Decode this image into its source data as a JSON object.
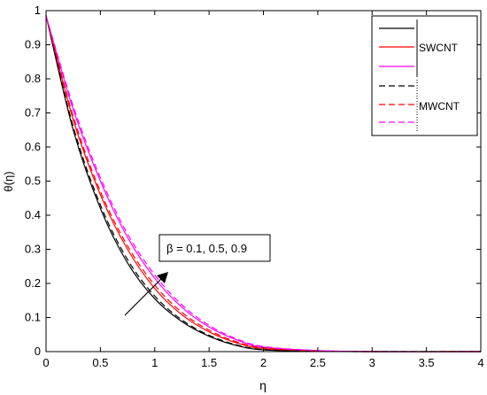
{
  "chart_data": {
    "type": "line",
    "xlabel": "η",
    "ylabel": "θ(η)",
    "xlim": [
      0,
      4
    ],
    "ylim": [
      0,
      1
    ],
    "xticks": [
      "0",
      "0.5",
      "1",
      "1.5",
      "2",
      "2.5",
      "3",
      "3.5",
      "4"
    ],
    "yticks": [
      "0",
      "0.1",
      "0.2",
      "0.3",
      "0.4",
      "0.5",
      "0.6",
      "0.7",
      "0.8",
      "0.9",
      "1"
    ],
    "grid": false,
    "legend_position": "top-right",
    "legend_labels": [
      "SWCNT",
      "MWCNT"
    ],
    "annotation": "β = 0.1, 0.5, 0.9",
    "series": [
      {
        "group": "SWCNT",
        "color": "#000000",
        "dash": "solid",
        "x": [
          0,
          0.25,
          0.5,
          0.75,
          1.0,
          1.25,
          1.5,
          1.75,
          2.0,
          2.5,
          3.0,
          4.0
        ],
        "values": [
          0.985,
          0.65,
          0.42,
          0.26,
          0.155,
          0.088,
          0.045,
          0.018,
          0.005,
          0.001,
          0,
          0
        ]
      },
      {
        "group": "SWCNT",
        "color": "#ff0000",
        "dash": "solid",
        "x": [
          0,
          0.25,
          0.5,
          0.75,
          1.0,
          1.25,
          1.5,
          1.75,
          2.0,
          2.5,
          3.0,
          4.0
        ],
        "values": [
          0.985,
          0.68,
          0.46,
          0.3,
          0.185,
          0.108,
          0.058,
          0.026,
          0.009,
          0.002,
          0,
          0
        ]
      },
      {
        "group": "SWCNT",
        "color": "#ff00ff",
        "dash": "solid",
        "x": [
          0,
          0.25,
          0.5,
          0.75,
          1.0,
          1.25,
          1.5,
          1.75,
          2.0,
          2.5,
          3.0,
          4.0
        ],
        "values": [
          0.985,
          0.71,
          0.5,
          0.335,
          0.215,
          0.13,
          0.072,
          0.035,
          0.013,
          0.003,
          0,
          0
        ]
      },
      {
        "group": "MWCNT",
        "color": "#000000",
        "dash": "dashed",
        "x": [
          0,
          0.25,
          0.5,
          0.75,
          1.0,
          1.25,
          1.5,
          1.75,
          2.0,
          2.5,
          3.0,
          4.0
        ],
        "values": [
          0.985,
          0.66,
          0.43,
          0.27,
          0.163,
          0.093,
          0.048,
          0.02,
          0.006,
          0.001,
          0,
          0
        ]
      },
      {
        "group": "MWCNT",
        "color": "#ff0000",
        "dash": "dashed",
        "x": [
          0,
          0.25,
          0.5,
          0.75,
          1.0,
          1.25,
          1.5,
          1.75,
          2.0,
          2.5,
          3.0,
          4.0
        ],
        "values": [
          0.985,
          0.69,
          0.47,
          0.31,
          0.195,
          0.115,
          0.063,
          0.029,
          0.011,
          0.002,
          0,
          0
        ]
      },
      {
        "group": "MWCNT",
        "color": "#ff00ff",
        "dash": "dashed",
        "x": [
          0,
          0.25,
          0.5,
          0.75,
          1.0,
          1.25,
          1.5,
          1.75,
          2.0,
          2.5,
          3.0,
          4.0
        ],
        "values": [
          0.985,
          0.72,
          0.51,
          0.345,
          0.225,
          0.137,
          0.077,
          0.038,
          0.015,
          0.003,
          0,
          0
        ]
      }
    ]
  }
}
